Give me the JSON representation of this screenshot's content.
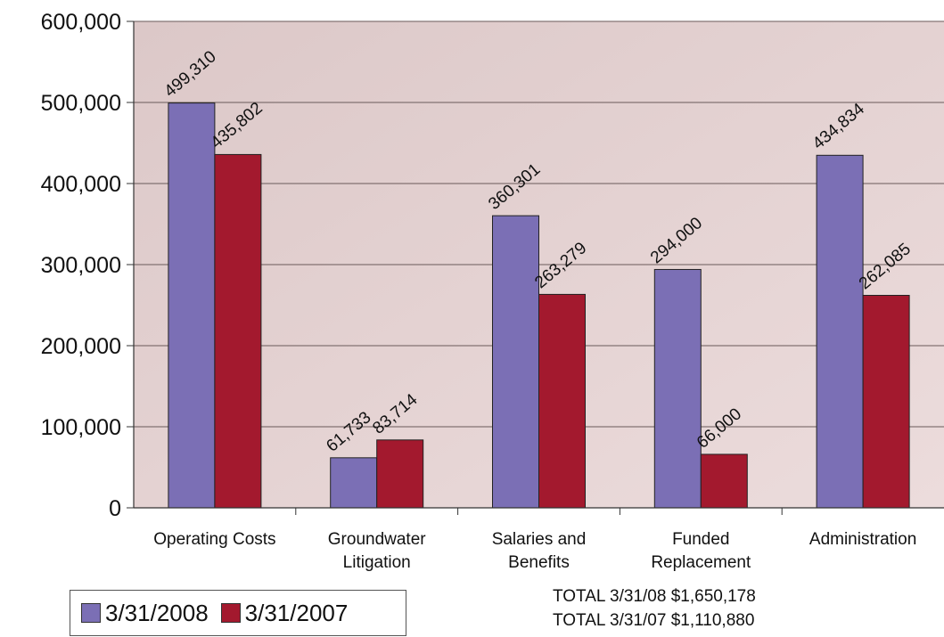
{
  "chart_data": {
    "type": "bar",
    "categories": [
      [
        "Operating Costs"
      ],
      [
        "Groundwater",
        "Litigation"
      ],
      [
        "Salaries and",
        "Benefits"
      ],
      [
        "Funded",
        "Replacement"
      ],
      [
        "Administration"
      ]
    ],
    "series": [
      {
        "name": "3/31/2008",
        "color": "#7b6fb5",
        "values": [
          499310,
          61733,
          360301,
          294000,
          434834
        ],
        "labels": [
          "499,310",
          "61,733",
          "360,301",
          "294,000",
          "434,834"
        ]
      },
      {
        "name": "3/31/2007",
        "color": "#a3192e",
        "values": [
          435802,
          83714,
          263279,
          66000,
          262085
        ],
        "labels": [
          "435,802",
          "83,714",
          "263,279",
          "66,000",
          "262,085"
        ]
      }
    ],
    "ylim": [
      0,
      600000
    ],
    "yticks": [
      0,
      100000,
      200000,
      300000,
      400000,
      500000,
      600000
    ],
    "ytick_labels": [
      "0",
      "100,000",
      "200,000",
      "300,000",
      "400,000",
      "500,000",
      "600,000"
    ],
    "grid": true,
    "legend": "bottom-left"
  },
  "totals": [
    "TOTAL 3/31/08 $1,650,178",
    "TOTAL 3/31/07 $1,110,880"
  ]
}
